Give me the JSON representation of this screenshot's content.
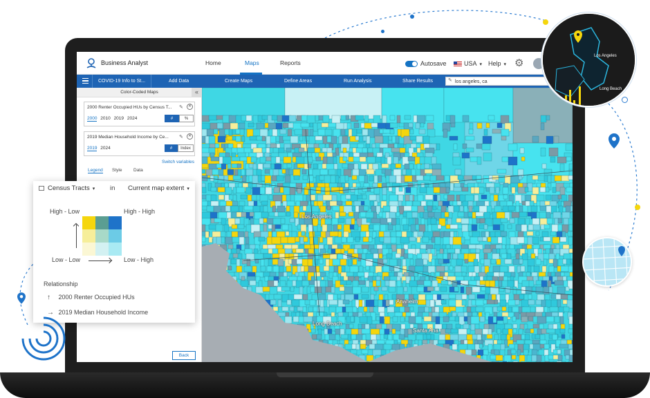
{
  "app": {
    "name": "Business Analyst",
    "nav": [
      {
        "label": "Home",
        "active": false
      },
      {
        "label": "Maps",
        "active": true
      },
      {
        "label": "Reports",
        "active": false
      }
    ],
    "autosave_label": "Autosave",
    "country": "USA",
    "help": "Help"
  },
  "toolbar": {
    "project": "COVID-19 Info to St...",
    "items": [
      "Add Data",
      "Create Maps",
      "Define Areas",
      "Run Analysis",
      "Share Results"
    ],
    "search_value": "los angeles, ca"
  },
  "panel": {
    "title": "Color-Coded Maps",
    "layers": [
      {
        "title": "2000 Renter Occupied HUs by Census T...",
        "years": [
          "2000",
          "2010",
          "2019",
          "2024"
        ],
        "selected_year": "2000",
        "modes": [
          "#",
          "%"
        ],
        "selected_mode": "#"
      },
      {
        "title": "2019 Median Household Income by Ce...",
        "years": [
          "2019",
          "2024"
        ],
        "selected_year": "2019",
        "modes": [
          "#",
          "Index"
        ],
        "selected_mode": "#"
      }
    ],
    "switch_variables": "Switch variables",
    "tabs": [
      "Legend",
      "Style",
      "Data"
    ],
    "active_tab": "Legend",
    "back": "Back"
  },
  "map": {
    "labels": [
      "Los Angeles",
      "Anaheim",
      "Long Beach",
      "Santa Ana"
    ]
  },
  "legend": {
    "geography": "Census Tracts",
    "in_label": "in",
    "extent": "Current map extent",
    "high_low": "High - Low",
    "high_high": "High - High",
    "low_low": "Low - Low",
    "low_high": "Low - High",
    "grid_colors": [
      [
        "#f5d60d",
        "#5b9e92",
        "#1e73c9"
      ],
      [
        "#f6ee9a",
        "#a8d9c8",
        "#6ccbe6"
      ],
      [
        "#fbf7d4",
        "#d3f1f2",
        "#a9eaf3"
      ]
    ],
    "relationship_title": "Relationship",
    "relationship_items": [
      {
        "arrow": "↑",
        "label": "2000 Renter Occupied HUs"
      },
      {
        "arrow": "→",
        "label": "2019 Median Household Income"
      }
    ]
  },
  "inset": {
    "labels": [
      "Los Angeles",
      "Long Beach"
    ]
  },
  "colors": {
    "brand_blue": "#1e64b4",
    "accent_yellow": "#f5d60d",
    "map_cyan": "#3fd7e4"
  }
}
